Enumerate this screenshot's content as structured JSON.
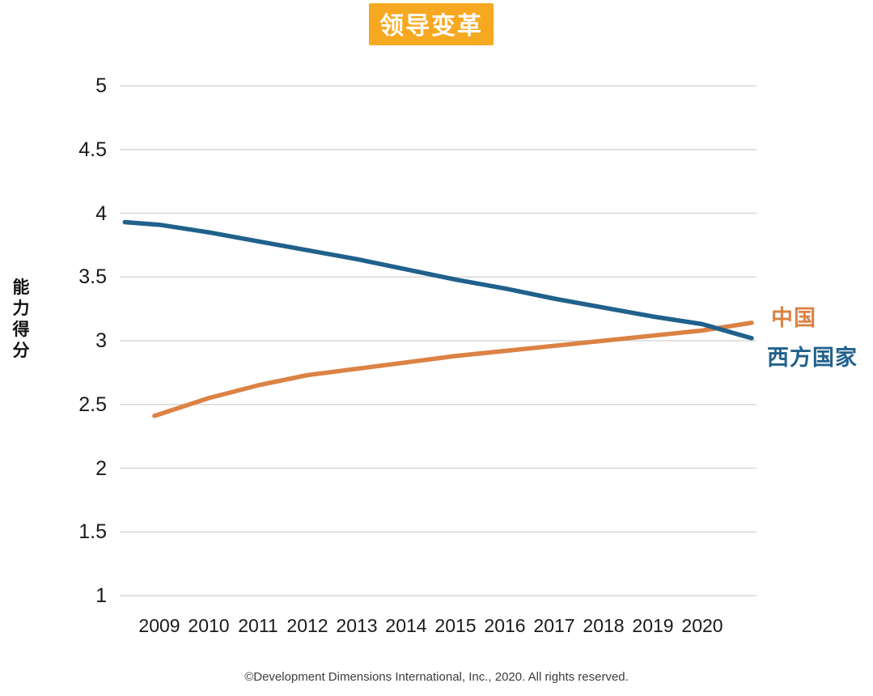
{
  "title": {
    "text": "领导变革"
  },
  "y_axis": {
    "title": "能力得分"
  },
  "legend": {
    "china": "中国",
    "west": "西方国家"
  },
  "footer": {
    "text": "©Development Dimensions International, Inc., 2020. All rights reserved."
  },
  "colors": {
    "title_bg": "#F6A820",
    "title_text": "#FFFFFF",
    "china_line": "#DB8244",
    "west_line": "#20618C",
    "grid": "#D8D8D8",
    "tick_text": "#1A1A1A"
  },
  "chart_data": {
    "type": "line",
    "title": "领导变革",
    "xlabel": "",
    "ylabel": "能力得分",
    "ylim": [
      1,
      5
    ],
    "yticks": [
      5,
      4.5,
      4,
      3.5,
      3,
      2.5,
      2,
      1.5,
      1
    ],
    "xticks": [
      2009,
      2010,
      2011,
      2012,
      2013,
      2014,
      2015,
      2016,
      2017,
      2018,
      2019,
      2020
    ],
    "grid": true,
    "legend_position": "right",
    "series": [
      {
        "name": "中国",
        "color": "#DB8244",
        "points": [
          [
            2008.9,
            2.41
          ],
          [
            2010,
            2.55
          ],
          [
            2011,
            2.65
          ],
          [
            2012,
            2.73
          ],
          [
            2013,
            2.78
          ],
          [
            2014,
            2.83
          ],
          [
            2015,
            2.88
          ],
          [
            2016,
            2.92
          ],
          [
            2017,
            2.96
          ],
          [
            2018,
            3.0
          ],
          [
            2019,
            3.04
          ],
          [
            2020,
            3.08
          ],
          [
            2021.0,
            3.14
          ]
        ]
      },
      {
        "name": "西方国家",
        "color": "#20618C",
        "points": [
          [
            2008.3,
            3.93
          ],
          [
            2009,
            3.91
          ],
          [
            2010,
            3.85
          ],
          [
            2011,
            3.78
          ],
          [
            2012,
            3.71
          ],
          [
            2013,
            3.64
          ],
          [
            2014,
            3.56
          ],
          [
            2015,
            3.48
          ],
          [
            2016,
            3.41
          ],
          [
            2017,
            3.33
          ],
          [
            2018,
            3.26
          ],
          [
            2019,
            3.19
          ],
          [
            2020,
            3.13
          ],
          [
            2021.0,
            3.02
          ]
        ]
      }
    ]
  }
}
